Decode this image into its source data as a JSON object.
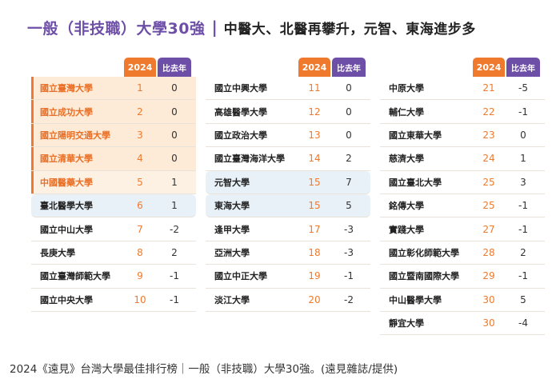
{
  "title": {
    "main": "一般（非技職）大學30強",
    "separator": "|",
    "subtitle": "中醫大、北醫再攀升，元智、東海進步多"
  },
  "headers": {
    "year": "2024",
    "change": "比去年"
  },
  "columns": [
    {
      "rows": [
        {
          "name": "國立臺灣大學",
          "rank": "1",
          "change": "0"
        },
        {
          "name": "國立成功大學",
          "rank": "2",
          "change": "0"
        },
        {
          "name": "國立陽明交通大學",
          "rank": "3",
          "change": "0"
        },
        {
          "name": "國立清華大學",
          "rank": "4",
          "change": "0"
        },
        {
          "name": "中國醫藥大學",
          "rank": "5",
          "change": "1"
        },
        {
          "name": "臺北醫學大學",
          "rank": "6",
          "change": "1"
        },
        {
          "name": "國立中山大學",
          "rank": "7",
          "change": "-2"
        },
        {
          "name": "長庚大學",
          "rank": "8",
          "change": "2"
        },
        {
          "name": "國立臺灣師範大學",
          "rank": "9",
          "change": "-1"
        },
        {
          "name": "國立中央大學",
          "rank": "10",
          "change": "-1"
        }
      ]
    },
    {
      "rows": [
        {
          "name": "國立中興大學",
          "rank": "11",
          "change": "0"
        },
        {
          "name": "高雄醫學大學",
          "rank": "12",
          "change": "0"
        },
        {
          "name": "國立政治大學",
          "rank": "13",
          "change": "0"
        },
        {
          "name": "國立臺灣海洋大學",
          "rank": "14",
          "change": "2"
        },
        {
          "name": "元智大學",
          "rank": "15",
          "change": "7"
        },
        {
          "name": "東海大學",
          "rank": "15",
          "change": "5"
        },
        {
          "name": "逢甲大學",
          "rank": "17",
          "change": "-3"
        },
        {
          "name": "亞洲大學",
          "rank": "18",
          "change": "-3"
        },
        {
          "name": "國立中正大學",
          "rank": "19",
          "change": "-1"
        },
        {
          "name": "淡江大學",
          "rank": "20",
          "change": "-2"
        }
      ]
    },
    {
      "rows": [
        {
          "name": "中原大學",
          "rank": "21",
          "change": "-5"
        },
        {
          "name": "輔仁大學",
          "rank": "22",
          "change": "-1"
        },
        {
          "name": "國立東華大學",
          "rank": "23",
          "change": "0"
        },
        {
          "name": "慈濟大學",
          "rank": "24",
          "change": "1"
        },
        {
          "name": "國立臺北大學",
          "rank": "25",
          "change": "3"
        },
        {
          "name": "銘傳大學",
          "rank": "25",
          "change": "-1"
        },
        {
          "name": "實踐大學",
          "rank": "27",
          "change": "-1"
        },
        {
          "name": "國立彰化師範大學",
          "rank": "28",
          "change": "2"
        },
        {
          "name": "國立暨南國際大學",
          "rank": "29",
          "change": "-1"
        },
        {
          "name": "中山醫學大學",
          "rank": "30",
          "change": "5"
        },
        {
          "name": "靜宜大學",
          "rank": "30",
          "change": "-4"
        }
      ]
    }
  ],
  "caption": "2024《遠見》台灣大學最佳排行榜｜一般（非技職）大學30強。(遠見雜誌/提供)"
}
